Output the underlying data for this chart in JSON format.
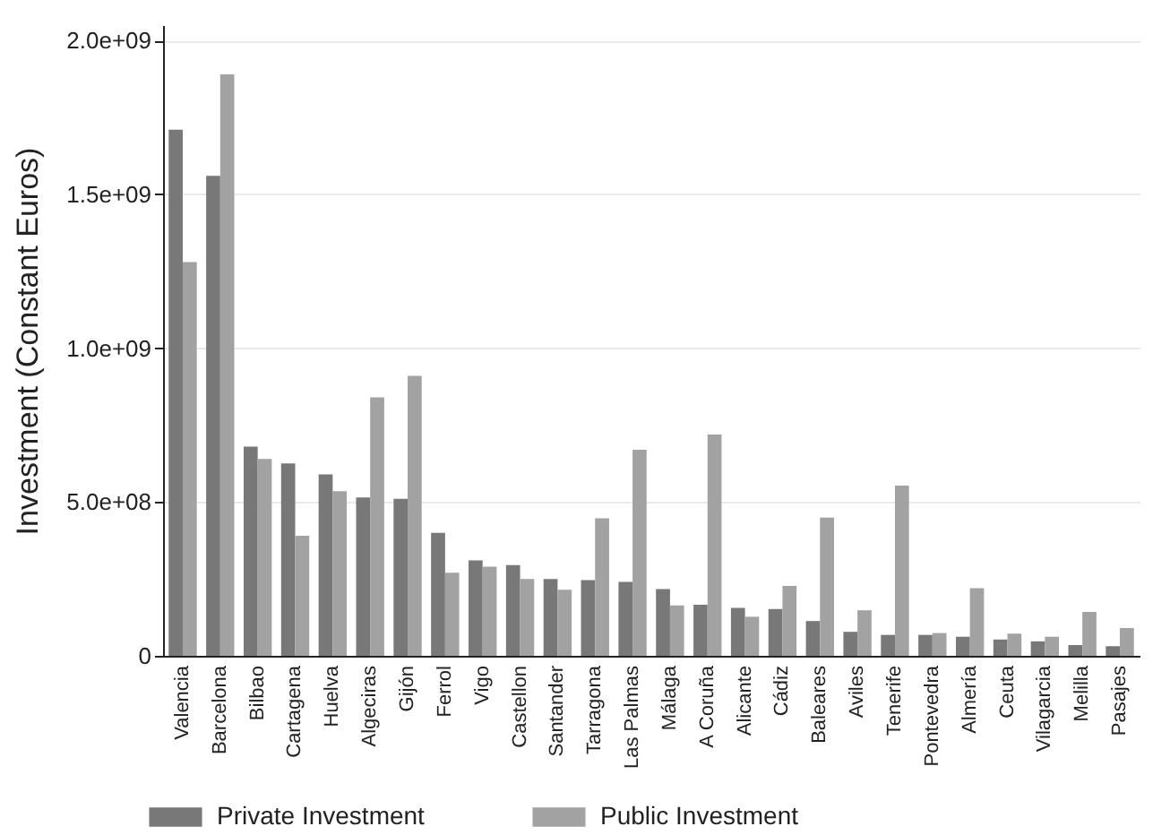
{
  "chart_data": {
    "type": "bar",
    "ylabel": "Investment (Constant Euros)",
    "categories": [
      "Valencia",
      "Barcelona",
      "Bilbao",
      "Cartagena",
      "Huelva",
      "Algeciras",
      "Gijón",
      "Ferrol",
      "Vigo",
      "Castellon",
      "Santander",
      "Tarragona",
      "Las Palmas",
      "Málaga",
      "A Coruña",
      "Alicante",
      "Cádiz",
      "Baleares",
      "Aviles",
      "Tenerife",
      "Pontevedra",
      "Almería",
      "Ceuta",
      "Vilagarcia",
      "Melilla",
      "Pasajes"
    ],
    "series": [
      {
        "name": "Private Investment",
        "color": "#787878",
        "values": [
          1710000000.0,
          1560000000.0,
          680000000.0,
          625000000.0,
          590000000.0,
          515000000.0,
          510000000.0,
          400000000.0,
          310000000.0,
          295000000.0,
          250000000.0,
          246000000.0,
          240000000.0,
          217000000.0,
          166000000.0,
          156000000.0,
          152000000.0,
          113000000.0,
          78000000.0,
          68000000.0,
          68000000.0,
          62000000.0,
          53000000.0,
          47000000.0,
          35000000.0,
          31000000.0
        ]
      },
      {
        "name": "Public Investment",
        "color": "#a2a2a2",
        "values": [
          1280000000.0,
          1890000000.0,
          640000000.0,
          390000000.0,
          535000000.0,
          840000000.0,
          910000000.0,
          270000000.0,
          290000000.0,
          250000000.0,
          215000000.0,
          447000000.0,
          670000000.0,
          164000000.0,
          719000000.0,
          127000000.0,
          227000000.0,
          449000000.0,
          148000000.0,
          553000000.0,
          74000000.0,
          220000000.0,
          72000000.0,
          62000000.0,
          143000000.0,
          90000000.0
        ]
      }
    ],
    "ylim": [
      0,
      2050000000.0
    ],
    "yticks": [
      {
        "value": 0,
        "label": "0"
      },
      {
        "value": 500000000.0,
        "label": "5.0e+08"
      },
      {
        "value": 1000000000.0,
        "label": "1.0e+09"
      },
      {
        "value": 1500000000.0,
        "label": "1.5e+09"
      },
      {
        "value": 2000000000.0,
        "label": "2.0e+09"
      }
    ],
    "grid": "y",
    "legend": "bottom"
  }
}
